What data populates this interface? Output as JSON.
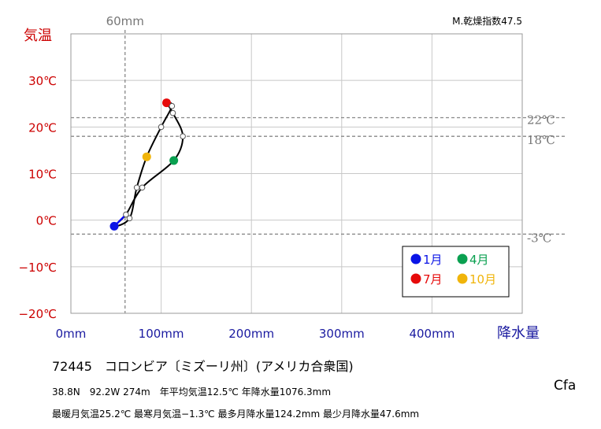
{
  "chart_data": {
    "type": "scatter",
    "title": "",
    "aridity_label": "M.乾燥指数47.5",
    "xlabel": "降水量",
    "ylabel": "気温",
    "xlim": [
      0,
      500
    ],
    "ylim": [
      -20,
      40
    ],
    "x_ticks": [
      {
        "value": 0,
        "label": "0mm"
      },
      {
        "value": 100,
        "label": "100mm"
      },
      {
        "value": 200,
        "label": "200mm"
      },
      {
        "value": 300,
        "label": "300mm"
      },
      {
        "value": 400,
        "label": "400mm"
      }
    ],
    "y_ticks": [
      {
        "value": -20,
        "label": "−20℃"
      },
      {
        "value": -10,
        "label": "−10℃"
      },
      {
        "value": 0,
        "label": "0℃"
      },
      {
        "value": 10,
        "label": "10℃"
      },
      {
        "value": 20,
        "label": "20℃"
      },
      {
        "value": 30,
        "label": "30℃"
      }
    ],
    "reference_lines": {
      "vertical": [
        {
          "value": 60,
          "label": "60mm"
        }
      ],
      "horizontal": [
        {
          "value": 22,
          "label": "22℃"
        },
        {
          "value": 18,
          "label": "18℃"
        },
        {
          "value": -3,
          "label": "-3℃"
        }
      ]
    },
    "grid": true,
    "legend_position": "bottom-right",
    "months": [
      {
        "month": 1,
        "precip": 48,
        "temp": -1.3
      },
      {
        "month": 2,
        "precip": 61,
        "temp": 1.2
      },
      {
        "month": 3,
        "precip": 79,
        "temp": 7.0
      },
      {
        "month": 4,
        "precip": 114,
        "temp": 12.8
      },
      {
        "month": 5,
        "precip": 124,
        "temp": 18.0
      },
      {
        "month": 6,
        "precip": 113,
        "temp": 23.0
      },
      {
        "month": 7,
        "precip": 106,
        "temp": 25.2
      },
      {
        "month": 8,
        "precip": 112,
        "temp": 24.5
      },
      {
        "month": 9,
        "precip": 100,
        "temp": 20.0
      },
      {
        "month": 10,
        "precip": 84,
        "temp": 13.6
      },
      {
        "month": 11,
        "precip": 73,
        "temp": 7.0
      },
      {
        "month": 12,
        "precip": 65,
        "temp": 0.4
      }
    ],
    "highlight": [
      {
        "month": 1,
        "label": "1月",
        "color": "#0a14e6"
      },
      {
        "month": 4,
        "label": "4月",
        "color": "#0aa050"
      },
      {
        "month": 7,
        "label": "7月",
        "color": "#e60a0a"
      },
      {
        "month": 10,
        "label": "10月",
        "color": "#f0b40a"
      }
    ],
    "colors": {
      "temp_axis": "#cc0000",
      "precip_axis": "#1a1aa0",
      "reference": "#888888",
      "path": "#000000",
      "jan_segment": "#0000ff"
    }
  },
  "station": {
    "title": "72445　コロンビア〔ミズーリ州〕(アメリカ合衆国)",
    "stats_line_1": "38.8N　92.2W 274m　年平均気温12.5℃ 年降水量1076.3mm",
    "stats_line_2": "最暖月気温25.2℃ 最寒月気温−1.3℃ 最多月降水量124.2mm 最少月降水量47.6mm",
    "climate_class": "Cfa"
  }
}
